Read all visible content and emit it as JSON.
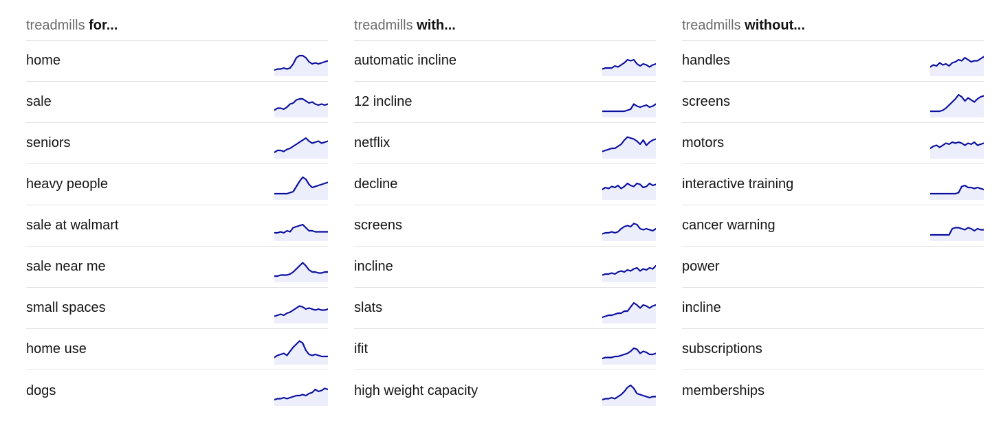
{
  "colors": {
    "sparkline": "#0a0f9e",
    "sparkline_fill": "#eceefb"
  },
  "columns": [
    {
      "header": {
        "prefix": "treadmills",
        "suffix": "for..."
      },
      "rows": [
        {
          "label": "home",
          "trend": [
            2,
            3,
            3,
            4,
            3,
            4,
            8,
            14,
            16,
            16,
            14,
            10,
            8,
            9,
            8,
            9,
            10,
            11
          ]
        },
        {
          "label": "sale",
          "trend": [
            3,
            5,
            5,
            4,
            6,
            9,
            10,
            13,
            14,
            14,
            12,
            10,
            11,
            9,
            8,
            9,
            8,
            9
          ]
        },
        {
          "label": "seniors",
          "trend": [
            2,
            4,
            4,
            3,
            5,
            6,
            8,
            10,
            12,
            14,
            16,
            13,
            11,
            12,
            13,
            11,
            12,
            13
          ]
        },
        {
          "label": "heavy people",
          "trend": [
            2,
            2,
            2,
            2,
            2,
            3,
            4,
            9,
            14,
            18,
            16,
            11,
            8,
            9,
            10,
            11,
            12,
            13
          ]
        },
        {
          "label": "sale at walmart",
          "trend": [
            4,
            4,
            5,
            4,
            6,
            5,
            9,
            10,
            11,
            12,
            9,
            6,
            6,
            5,
            5,
            5,
            5,
            5
          ]
        },
        {
          "label": "sale near me",
          "trend": [
            2,
            2,
            3,
            3,
            3,
            4,
            6,
            9,
            12,
            15,
            12,
            8,
            6,
            6,
            5,
            5,
            6,
            6
          ]
        },
        {
          "label": "small spaces",
          "trend": [
            3,
            4,
            5,
            4,
            6,
            7,
            9,
            11,
            13,
            12,
            10,
            11,
            10,
            9,
            10,
            9,
            9,
            10
          ]
        },
        {
          "label": "home use",
          "trend": [
            3,
            5,
            6,
            7,
            5,
            9,
            13,
            16,
            19,
            17,
            10,
            6,
            5,
            6,
            5,
            4,
            4,
            4
          ]
        },
        {
          "label": "dogs",
          "trend": [
            2,
            3,
            3,
            4,
            3,
            4,
            5,
            6,
            6,
            7,
            6,
            8,
            9,
            12,
            10,
            11,
            13,
            12
          ]
        }
      ]
    },
    {
      "header": {
        "prefix": "treadmills",
        "suffix": "with..."
      },
      "rows": [
        {
          "label": "automatic incline",
          "trend": [
            3,
            4,
            4,
            4,
            6,
            5,
            7,
            9,
            12,
            11,
            12,
            8,
            6,
            8,
            7,
            5,
            7,
            8
          ]
        },
        {
          "label": "12 incline",
          "trend": [
            2,
            2,
            2,
            2,
            2,
            2,
            2,
            2,
            3,
            4,
            9,
            7,
            6,
            7,
            8,
            6,
            7,
            9
          ]
        },
        {
          "label": "netflix",
          "trend": [
            3,
            4,
            5,
            6,
            6,
            8,
            10,
            14,
            17,
            16,
            15,
            13,
            10,
            14,
            9,
            12,
            14,
            15
          ]
        },
        {
          "label": "decline",
          "trend": [
            6,
            8,
            7,
            9,
            8,
            10,
            7,
            9,
            12,
            10,
            9,
            12,
            11,
            8,
            9,
            12,
            10,
            11
          ]
        },
        {
          "label": "screens",
          "trend": [
            3,
            4,
            4,
            5,
            4,
            5,
            8,
            10,
            11,
            10,
            13,
            12,
            8,
            7,
            8,
            7,
            6,
            8
          ]
        },
        {
          "label": "incline",
          "trend": [
            3,
            4,
            4,
            5,
            4,
            6,
            7,
            6,
            8,
            7,
            9,
            10,
            7,
            9,
            8,
            10,
            9,
            12
          ]
        },
        {
          "label": "slats",
          "trend": [
            2,
            3,
            4,
            4,
            5,
            6,
            6,
            8,
            8,
            12,
            16,
            14,
            11,
            14,
            13,
            11,
            13,
            14
          ]
        },
        {
          "label": "ifit",
          "trend": [
            2,
            3,
            3,
            3,
            4,
            4,
            5,
            6,
            7,
            9,
            12,
            11,
            7,
            9,
            8,
            6,
            6,
            7
          ]
        },
        {
          "label": "high weight capacity",
          "trend": [
            2,
            3,
            3,
            4,
            3,
            5,
            7,
            10,
            14,
            16,
            13,
            8,
            7,
            6,
            5,
            4,
            5,
            5
          ]
        }
      ]
    },
    {
      "header": {
        "prefix": "treadmills",
        "suffix": "without..."
      },
      "rows": [
        {
          "label": "handles",
          "trend": [
            5,
            7,
            6,
            9,
            7,
            8,
            6,
            9,
            10,
            12,
            11,
            14,
            12,
            10,
            11,
            11,
            13,
            15
          ]
        },
        {
          "label": "screens",
          "trend": [
            2,
            2,
            2,
            2,
            3,
            5,
            8,
            11,
            14,
            18,
            16,
            12,
            15,
            13,
            11,
            14,
            16,
            17
          ]
        },
        {
          "label": "motors",
          "trend": [
            6,
            8,
            9,
            7,
            9,
            11,
            10,
            12,
            11,
            12,
            11,
            9,
            11,
            10,
            12,
            9,
            10,
            11
          ]
        },
        {
          "label": "interactive training",
          "trend": [
            2,
            2,
            2,
            2,
            2,
            2,
            2,
            2,
            2,
            3,
            9,
            10,
            8,
            8,
            7,
            8,
            7,
            6
          ]
        },
        {
          "label": "cancer warning",
          "trend": [
            2,
            2,
            2,
            2,
            2,
            2,
            2,
            8,
            9,
            9,
            8,
            7,
            9,
            8,
            6,
            8,
            7,
            7
          ]
        },
        {
          "label": "power",
          "trend": []
        },
        {
          "label": "incline",
          "trend": []
        },
        {
          "label": "subscriptions",
          "trend": []
        },
        {
          "label": "memberships",
          "trend": []
        }
      ]
    }
  ]
}
